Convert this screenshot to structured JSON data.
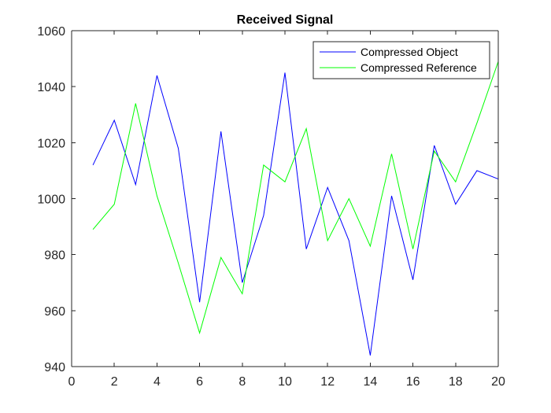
{
  "chart_data": {
    "type": "line",
    "title": "Received Signal",
    "xlabel": "",
    "ylabel": "",
    "xlim": [
      0,
      20
    ],
    "ylim": [
      940,
      1060
    ],
    "xticks": [
      0,
      2,
      4,
      6,
      8,
      10,
      12,
      14,
      16,
      18,
      20
    ],
    "yticks": [
      940,
      960,
      980,
      1000,
      1020,
      1040,
      1060
    ],
    "grid": false,
    "legend_position": "top-right",
    "x": [
      1,
      2,
      3,
      4,
      5,
      6,
      7,
      8,
      9,
      10,
      11,
      12,
      13,
      14,
      15,
      16,
      17,
      18,
      19,
      20
    ],
    "series": [
      {
        "name": "Compressed Object",
        "color": "#0000ff",
        "values": [
          1012,
          1028,
          1005,
          1044,
          1018,
          963,
          1024,
          970,
          994,
          1045,
          982,
          1004,
          985,
          944,
          1001,
          971,
          1019,
          998,
          1010,
          1007
        ]
      },
      {
        "name": "Compressed Reference",
        "color": "#00ff00",
        "values": [
          989,
          998,
          1034,
          1001,
          977,
          952,
          979,
          966,
          1012,
          1006,
          1025,
          985,
          1000,
          983,
          1016,
          982,
          1017,
          1006,
          1027,
          1049
        ]
      }
    ]
  }
}
